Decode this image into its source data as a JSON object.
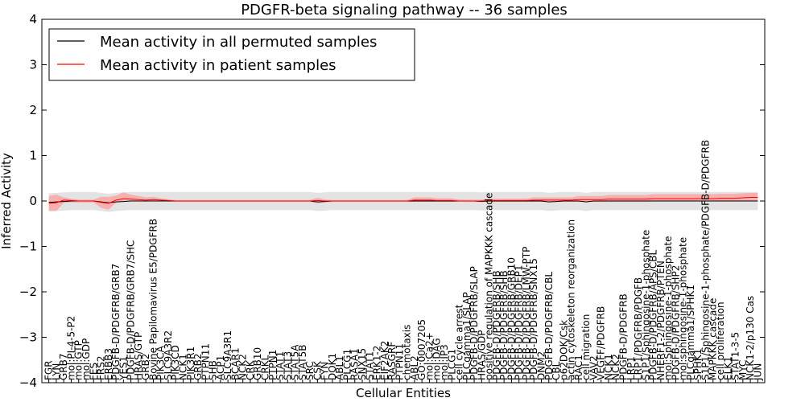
{
  "chart_data": {
    "type": "line",
    "title": "PDGFR-beta signaling pathway -- 36 samples",
    "xlabel": "Cellular Entities",
    "ylabel": "Inferred Activity",
    "ylim": [
      -4,
      4
    ],
    "yticks": [
      -4,
      -3,
      -2,
      -1,
      0,
      1,
      2,
      3,
      4
    ],
    "ytick_labels": [
      "−4",
      "−3",
      "−2",
      "−1",
      "0",
      "1",
      "2",
      "3",
      "4"
    ],
    "grid": false,
    "legend_position": "top-left",
    "colors": {
      "permuted": "#000000",
      "patient": "#ff0000",
      "permuted_band": "#d9d9d9",
      "patient_band": "#ff9999"
    },
    "categories": [
      "FGR",
      "LYN",
      "GRB7",
      "mol:PI-4-5-P2",
      "mol:GTP",
      "mol:GDP",
      "FES",
      "FRS2",
      "ERBB3",
      "PDGFB-D/PDGFRB/GRB7",
      "YES1",
      "PDGFB-D/PDGFRB/GRB7/SHC",
      "HRAS/GTP",
      "GRB2",
      "Bovine Papilomavirus E5/PDGFRB",
      "PIK3CA",
      "SLC9A3R2",
      "PIK3CD",
      "NCK1",
      "PIK3R1",
      "GRB2",
      "PTPN11",
      "SHB",
      "ACP1",
      "SLC9A3R1",
      "BCAR1",
      "NCK2",
      "CRK",
      "GRB10",
      "CRKL",
      "PTPN1",
      "STAT1",
      "STAT3",
      "STAT5A",
      "STAT5B",
      "SRC",
      "CSK",
      "FYN",
      "DOK1",
      "ABL1",
      "PLCG1",
      "RASA1",
      "SNX15",
      "STAT1",
      "ERK1-2",
      "EIF2AK2",
      "RASGRF",
      "PTPN11",
      "chemotaxis",
      "ABL2",
      "GO:0007205",
      "mol:Ca2+",
      "mol:DAG",
      "mol:IP3",
      "PLCG1",
      "cell cycle arrest",
      "PLCgamma1/SLAP",
      "PDGFB-D/PDGFRB/SLAP",
      "HRAS/GDP",
      "positive regulation of MAPKKK cascade",
      "PDGFB-D/PDGFRB/SHB",
      "PDGFB-D/PDGFRB/SHB",
      "PDGFB-D/PDGFRB/GRB10",
      "PDGFB-D/PDGFRB/DEP1",
      "PDGFB-D/PDGFRB/LMW-PTP",
      "PDGFB-D/PDGFRB/SNX15",
      "DNM2",
      "PDGFB-D/PDGFRB/CBL",
      "CBL",
      "p62DOK/Csk",
      "actin cytoskeleton reorganization",
      "RAC1",
      "cell migration",
      "VAV2",
      "VEGFF/PDGFRB",
      "NCK1",
      "NCK2",
      "PDGFB-D/PDGFRB",
      "LRP1",
      "LRP1/PDGFRB/PDGFB",
      "S1P1/Sphingosine-1-phosphate",
      "PDGFB-D/PDGFRB/APS/CBL",
      "NHERF1-2/PDGFRB/PTEN",
      "mol:Sphingosine-1-phosphate",
      "PDGFB-D/PDGFRB/SHP2",
      "mol:sphingosine-1-phosphate",
      "PLCgamma1/SPHK1",
      "SPHK1",
      "S1P1/Sphingosine-1-phosphate/PDGFB-D/PDGFRB",
      "MAPKKK cascade",
      "cell proliferation",
      "ELK1",
      "STAT1-3-5",
      "MYC",
      "NCK1-2/p130 Cas",
      "JUN"
    ],
    "series": [
      {
        "name": "Mean activity in all permuted samples",
        "values": [
          -0.03,
          -0.02,
          -0.01,
          0,
          0,
          0,
          0,
          -0.02,
          -0.04,
          -0.02,
          -0.01,
          0,
          0,
          0,
          0,
          0,
          0,
          0,
          0,
          0,
          0,
          0,
          0,
          0,
          0,
          0,
          0,
          0,
          0,
          0,
          0,
          0,
          0,
          0,
          0,
          0,
          -0.02,
          -0.01,
          0,
          0,
          0,
          0,
          0,
          0,
          0,
          0,
          0,
          0,
          0,
          0,
          0,
          0,
          0,
          0,
          0,
          0,
          0,
          0,
          -0.01,
          0,
          0,
          0,
          0,
          0,
          0,
          0,
          0,
          -0.02,
          -0.01,
          0,
          0,
          0,
          -0.02,
          0,
          0,
          0,
          0,
          0,
          0,
          0,
          0,
          0,
          0,
          0,
          0,
          0,
          0,
          0,
          0,
          0,
          0,
          0,
          0,
          0,
          0,
          0
        ],
        "band_low": -0.2,
        "band_high": 0.2
      },
      {
        "name": "Mean activity in patient samples",
        "values": [
          -0.05,
          -0.04,
          0.02,
          0.01,
          0,
          0,
          0,
          -0.03,
          -0.05,
          0.02,
          0.05,
          0.04,
          0.03,
          0.02,
          0.03,
          0.02,
          0.01,
          0,
          0,
          0,
          0,
          0,
          0,
          0,
          0,
          0,
          0,
          0,
          0,
          0,
          0,
          0,
          0,
          0,
          0,
          0,
          0.01,
          0,
          0,
          0,
          0,
          0,
          0,
          0,
          0,
          0,
          0,
          0,
          0,
          0.02,
          0.02,
          0.02,
          0.01,
          0.01,
          0.01,
          0,
          0,
          0,
          0,
          0.01,
          0.01,
          0.01,
          0.01,
          0.01,
          0.01,
          0.02,
          0.02,
          0.02,
          0.02,
          0.02,
          0.02,
          0.03,
          0.03,
          0.03,
          0.03,
          0.04,
          0.04,
          0.04,
          0.04,
          0.04,
          0.04,
          0.05,
          0.05,
          0.05,
          0.05,
          0.05,
          0.05,
          0.05,
          0.05,
          0.05,
          0.06,
          0.06,
          0.06,
          0.07,
          0.08,
          0.08
        ],
        "band_low_offsets": [
          -0.16,
          -0.18,
          -0.06,
          -0.04,
          -0.03,
          -0.03,
          -0.03,
          -0.12,
          -0.14,
          -0.06,
          -0.04,
          -0.04,
          -0.04,
          -0.03,
          -0.02,
          -0.02,
          -0.02,
          -0.02,
          -0.02,
          -0.02,
          -0.02,
          -0.02,
          -0.02,
          -0.02,
          -0.02,
          -0.02,
          -0.02,
          -0.02,
          -0.02,
          -0.02,
          -0.02,
          -0.02,
          -0.02,
          -0.02,
          -0.02,
          -0.02,
          -0.06,
          -0.03,
          -0.02,
          -0.02,
          -0.02,
          -0.02,
          -0.02,
          -0.02,
          -0.02,
          -0.02,
          -0.02,
          -0.02,
          -0.02,
          -0.04,
          -0.04,
          -0.04,
          -0.03,
          -0.03,
          -0.03,
          -0.02,
          -0.02,
          -0.02,
          -0.02,
          -0.03,
          -0.03,
          -0.03,
          -0.03,
          -0.03,
          -0.03,
          -0.04,
          -0.04,
          -0.04,
          -0.04,
          -0.04,
          -0.04,
          -0.05,
          -0.05,
          -0.05,
          -0.05,
          -0.06,
          -0.06,
          -0.06,
          -0.06,
          -0.06,
          -0.06,
          -0.06,
          -0.06,
          -0.06,
          -0.06,
          -0.06,
          -0.06,
          -0.06,
          -0.06,
          -0.06,
          -0.07,
          -0.07,
          -0.07,
          -0.08,
          -0.08,
          -0.08
        ],
        "band_high_offsets": [
          0.16,
          0.18,
          0.06,
          0.04,
          0.03,
          0.03,
          0.03,
          0.12,
          0.14,
          0.1,
          0.14,
          0.1,
          0.08,
          0.06,
          0.06,
          0.04,
          0.03,
          0.02,
          0.02,
          0.02,
          0.02,
          0.02,
          0.02,
          0.02,
          0.02,
          0.02,
          0.02,
          0.02,
          0.02,
          0.02,
          0.02,
          0.02,
          0.02,
          0.02,
          0.02,
          0.02,
          0.06,
          0.03,
          0.02,
          0.02,
          0.02,
          0.02,
          0.02,
          0.02,
          0.02,
          0.02,
          0.02,
          0.02,
          0.02,
          0.06,
          0.06,
          0.06,
          0.05,
          0.05,
          0.05,
          0.03,
          0.03,
          0.03,
          0.03,
          0.04,
          0.04,
          0.04,
          0.04,
          0.04,
          0.04,
          0.06,
          0.06,
          0.06,
          0.06,
          0.06,
          0.06,
          0.08,
          0.08,
          0.08,
          0.08,
          0.09,
          0.09,
          0.09,
          0.09,
          0.09,
          0.09,
          0.1,
          0.1,
          0.1,
          0.1,
          0.1,
          0.1,
          0.1,
          0.1,
          0.1,
          0.1,
          0.1,
          0.1,
          0.1,
          0.1,
          0.1
        ]
      }
    ]
  }
}
